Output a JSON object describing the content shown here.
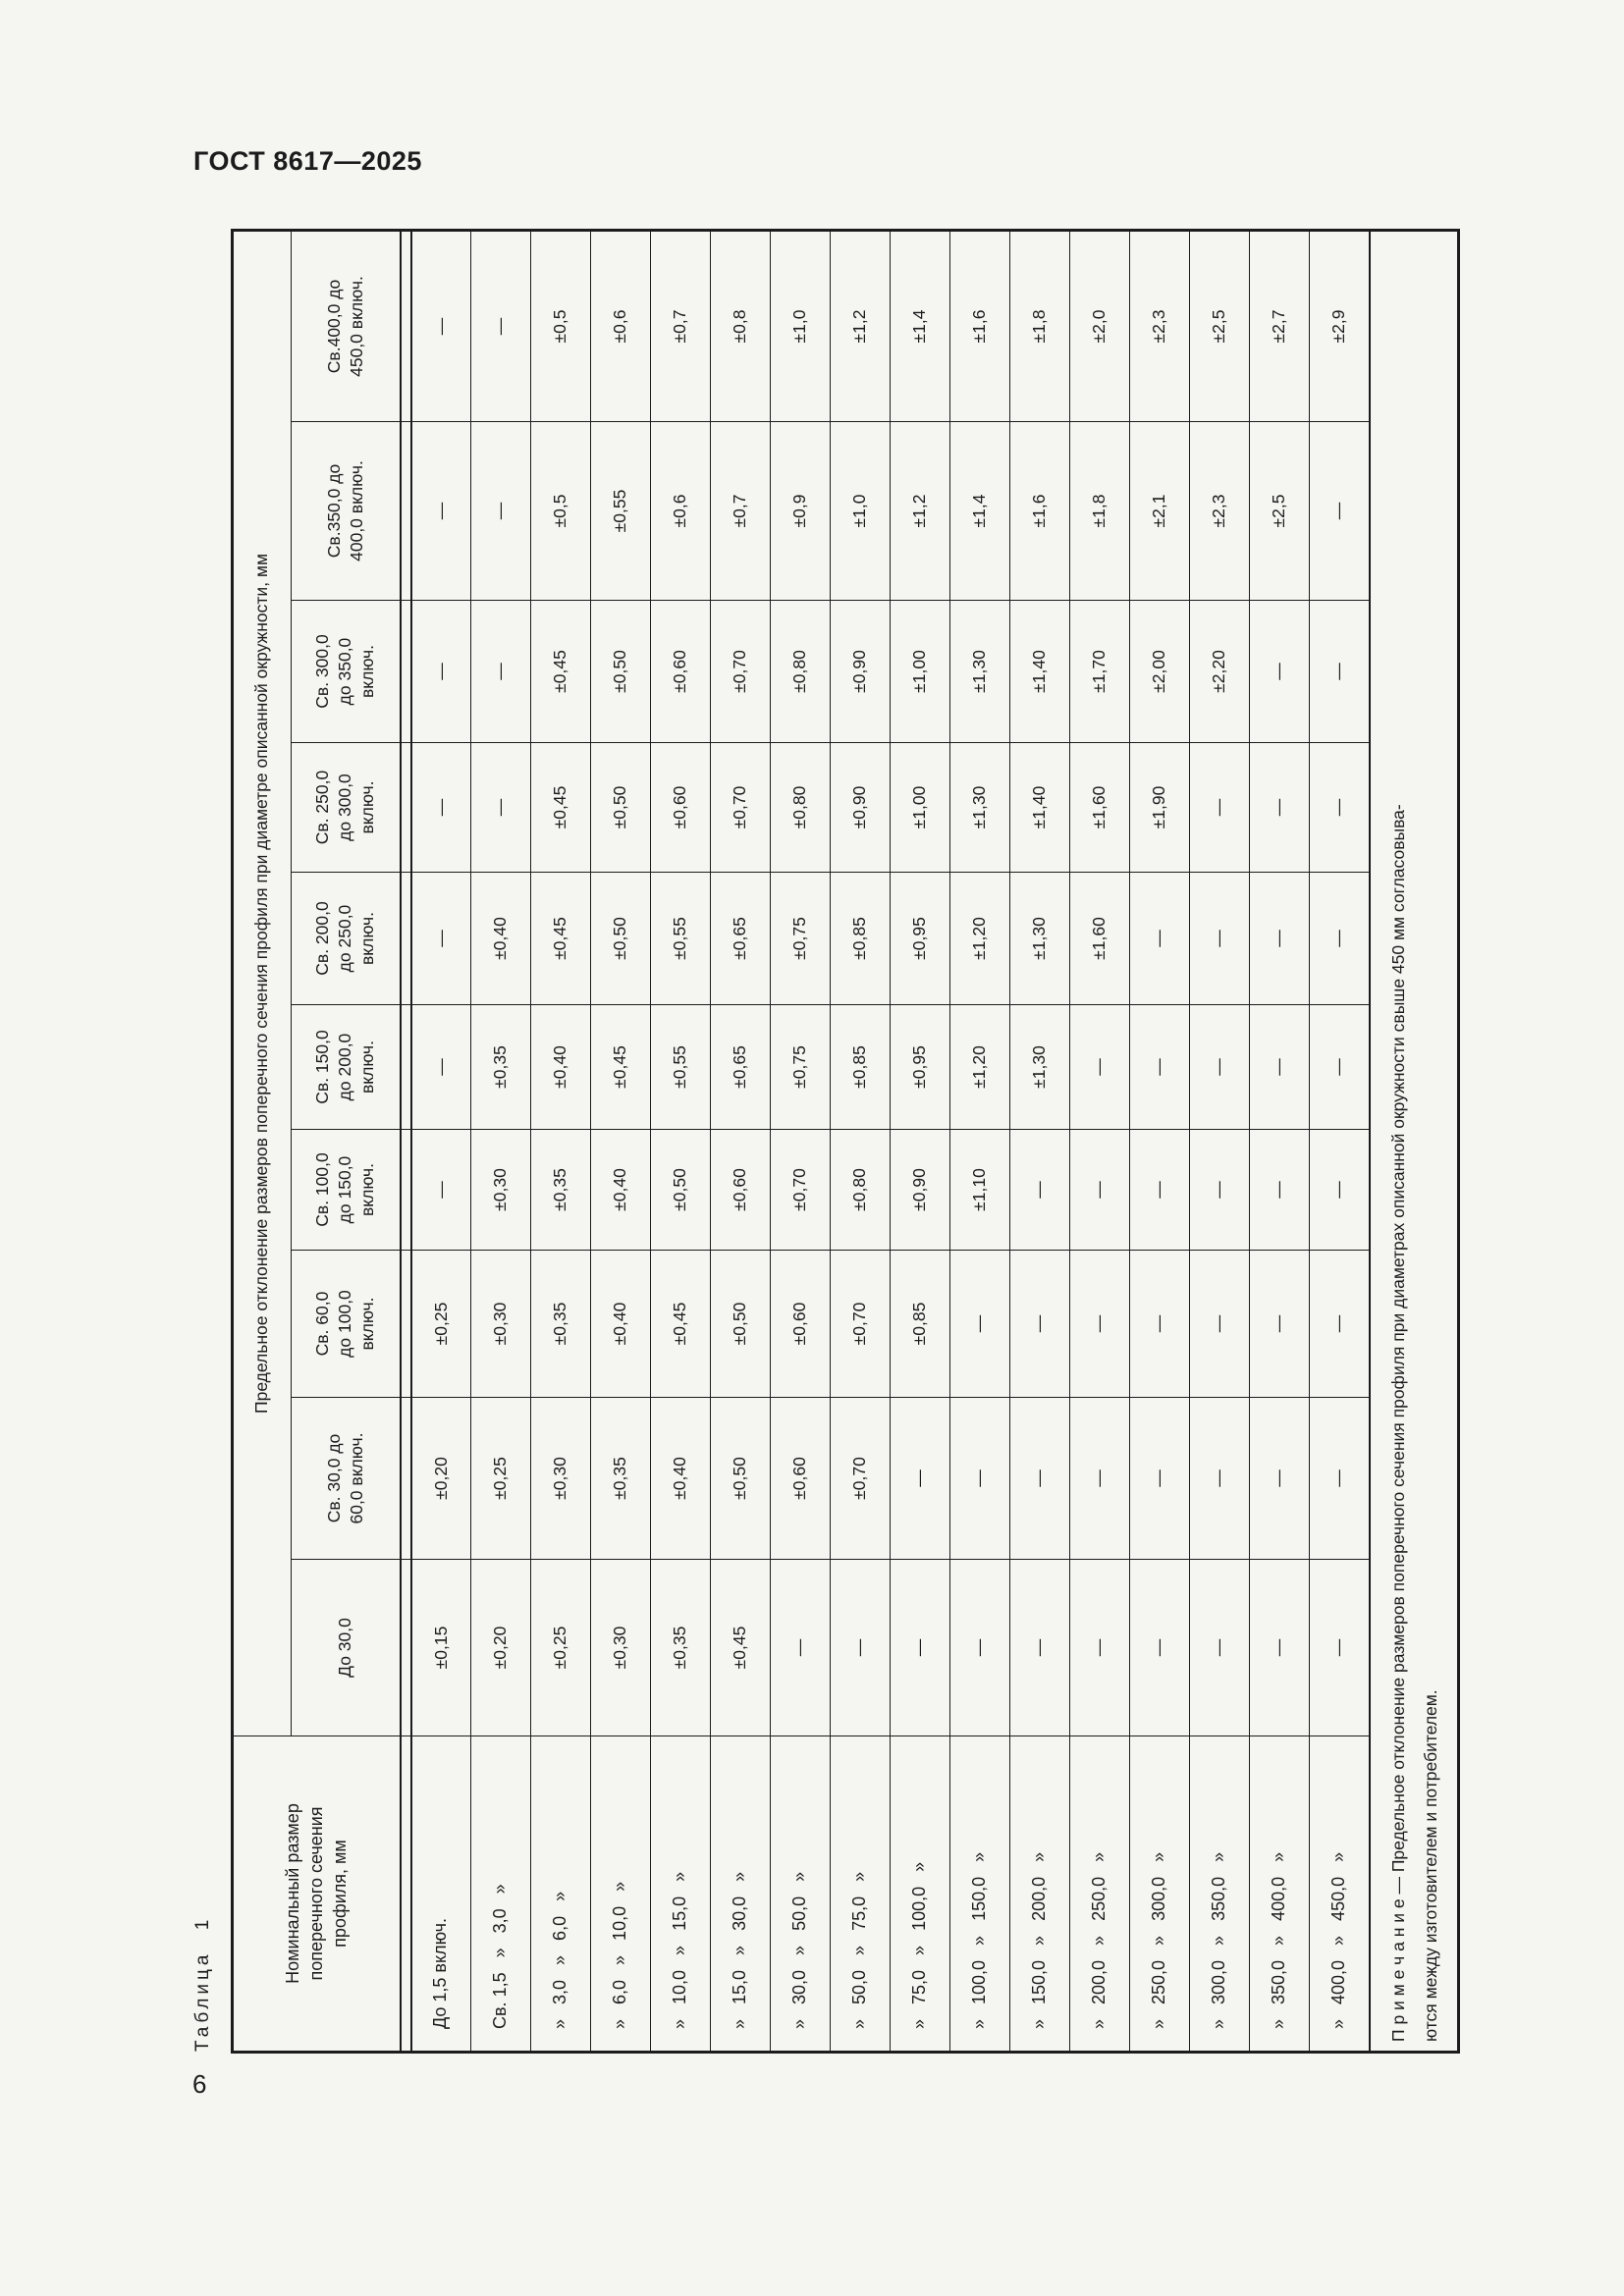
{
  "page": {
    "doc_code": "ГОСТ 8617—2025",
    "page_number": "6"
  },
  "table": {
    "caption": "Таблица 1",
    "stub_header": [
      "Номинальный размер",
      "поперечного сечения",
      "профиля, мм"
    ],
    "span_header": "Предельное отклонение размеров поперечного сечения профиля при диаметре описанной окружности, мм",
    "col_headers": [
      [
        "До 30,0"
      ],
      [
        "Св. 30,0 до",
        "60,0 включ."
      ],
      [
        "Св. 60,0",
        "до 100,0",
        "включ."
      ],
      [
        "Св. 100,0",
        "до 150,0",
        "включ."
      ],
      [
        "Св. 150,0",
        "до 200,0",
        "включ."
      ],
      [
        "Св. 200,0",
        "до 250,0",
        "включ."
      ],
      [
        "Св. 250,0",
        "до 300,0",
        "включ."
      ],
      [
        "Св. 300,0",
        "до 350,0",
        "включ."
      ],
      [
        "Св.350,0 до",
        "400,0 включ."
      ],
      [
        "Св.400,0 до",
        "450,0 включ."
      ]
    ],
    "rows": [
      {
        "label": "До 1,5 включ.",
        "values": [
          "±0,15",
          "±0,20",
          "±0,25",
          "—",
          "—",
          "—",
          "—",
          "—",
          "—",
          "—"
        ]
      },
      {
        "label": "Св. 1,5   »   3,0   »",
        "values": [
          "±0,20",
          "±0,25",
          "±0,30",
          "±0,30",
          "±0,35",
          "±0,40",
          "—",
          "—",
          "—",
          "—"
        ]
      },
      {
        "label": "»   3,0   »   6,0   »",
        "values": [
          "±0,25",
          "±0,30",
          "±0,35",
          "±0,35",
          "±0,40",
          "±0,45",
          "±0,45",
          "±0,45",
          "±0,5",
          "±0,5"
        ]
      },
      {
        "label": "»   6,0   »   10,0   »",
        "values": [
          "±0,30",
          "±0,35",
          "±0,40",
          "±0,40",
          "±0,45",
          "±0,50",
          "±0,50",
          "±0,50",
          "±0,55",
          "±0,6"
        ]
      },
      {
        "label": "»   10,0   »   15,0   »",
        "values": [
          "±0,35",
          "±0,40",
          "±0,45",
          "±0,50",
          "±0,55",
          "±0,55",
          "±0,60",
          "±0,60",
          "±0,6",
          "±0,7"
        ]
      },
      {
        "label": "»   15,0   »   30,0   »",
        "values": [
          "±0,45",
          "±0,50",
          "±0,50",
          "±0,60",
          "±0,65",
          "±0,65",
          "±0,70",
          "±0,70",
          "±0,7",
          "±0,8"
        ]
      },
      {
        "label": "»   30,0   »   50,0   »",
        "values": [
          "—",
          "±0,60",
          "±0,60",
          "±0,70",
          "±0,75",
          "±0,75",
          "±0,80",
          "±0,80",
          "±0,9",
          "±1,0"
        ]
      },
      {
        "label": "»   50,0   »   75,0   »",
        "values": [
          "—",
          "±0,70",
          "±0,70",
          "±0,80",
          "±0,85",
          "±0,85",
          "±0,90",
          "±0,90",
          "±1,0",
          "±1,2"
        ]
      },
      {
        "label": "»   75,0   »   100,0   »",
        "values": [
          "—",
          "—",
          "±0,85",
          "±0,90",
          "±0,95",
          "±0,95",
          "±1,00",
          "±1,00",
          "±1,2",
          "±1,4"
        ]
      },
      {
        "label": "»   100,0   »   150,0   »",
        "values": [
          "—",
          "—",
          "—",
          "±1,10",
          "±1,20",
          "±1,20",
          "±1,30",
          "±1,30",
          "±1,4",
          "±1,6"
        ]
      },
      {
        "label": "»   150,0   »   200,0   »",
        "values": [
          "—",
          "—",
          "—",
          "—",
          "±1,30",
          "±1,30",
          "±1,40",
          "±1,40",
          "±1,6",
          "±1,8"
        ]
      },
      {
        "label": "»   200,0   »   250,0   »",
        "values": [
          "—",
          "—",
          "—",
          "—",
          "—",
          "±1,60",
          "±1,60",
          "±1,70",
          "±1,8",
          "±2,0"
        ]
      },
      {
        "label": "»   250,0   »   300,0   »",
        "values": [
          "—",
          "—",
          "—",
          "—",
          "—",
          "—",
          "±1,90",
          "±2,00",
          "±2,1",
          "±2,3"
        ]
      },
      {
        "label": "»   300,0   »   350,0   »",
        "values": [
          "—",
          "—",
          "—",
          "—",
          "—",
          "—",
          "—",
          "±2,20",
          "±2,3",
          "±2,5"
        ]
      },
      {
        "label": "»   350,0   »   400,0   »",
        "values": [
          "—",
          "—",
          "—",
          "—",
          "—",
          "—",
          "—",
          "—",
          "±2,5",
          "±2,7"
        ]
      },
      {
        "label": "»   400,0   »   450,0   »",
        "values": [
          "—",
          "—",
          "—",
          "—",
          "—",
          "—",
          "—",
          "—",
          "—",
          "±2,9"
        ]
      }
    ],
    "note_line1": "П р и м е ч а н и е  —  Предельное отклонение размеров поперечного сечения профиля при диаметрах описанной окружности свыше 450 мм согласовыва-",
    "note_line2": "ются между изготовителем и потребителем."
  }
}
